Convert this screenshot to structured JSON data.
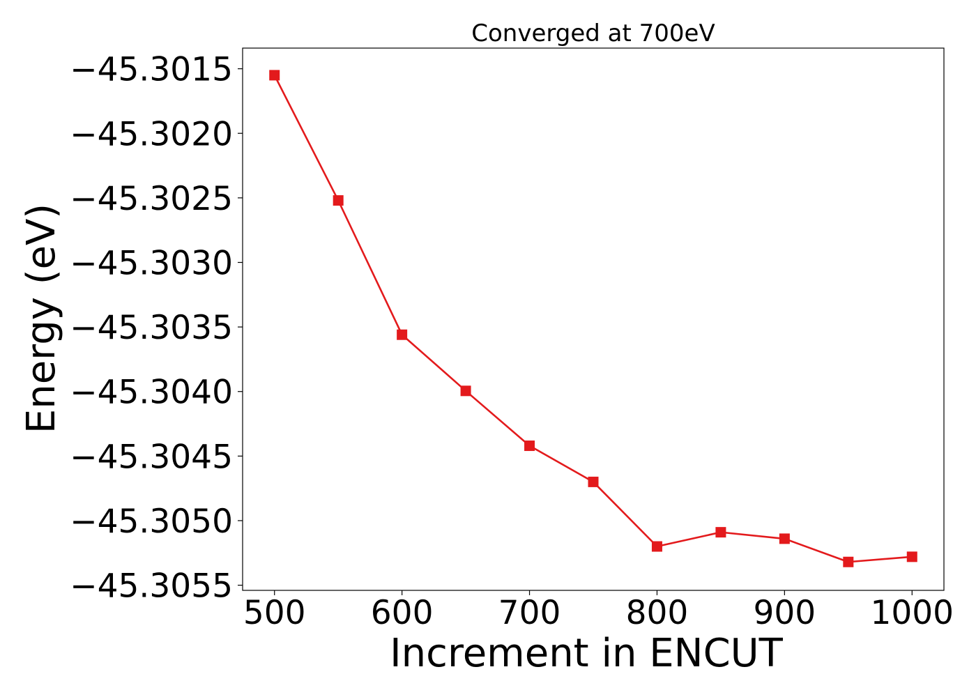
{
  "chart_data": {
    "type": "line",
    "title": "Converged at 700eV",
    "xlabel": "Increment in ENCUT",
    "ylabel": "Energy (eV)",
    "xlim": [
      475,
      1025
    ],
    "ylim": [
      -45.30554,
      -45.30134
    ],
    "xticks": [
      500,
      600,
      700,
      800,
      900,
      1000
    ],
    "xtick_labels": [
      "500",
      "600",
      "700",
      "800",
      "900",
      "1000"
    ],
    "yticks": [
      -45.3015,
      -45.302,
      -45.3025,
      -45.303,
      -45.3035,
      -45.304,
      -45.3045,
      -45.305,
      -45.3055
    ],
    "ytick_labels": [
      "−45.3015",
      "−45.3020",
      "−45.3025",
      "−45.3030",
      "−45.3035",
      "−45.3040",
      "−45.3045",
      "−45.3050",
      "−45.3055"
    ],
    "grid": false,
    "series": [
      {
        "color": "#e31a1c",
        "marker": "square",
        "x": [
          500,
          550,
          600,
          650,
          700,
          750,
          800,
          850,
          900,
          950,
          1000
        ],
        "y": [
          -45.30155,
          -45.30252,
          -45.30356,
          -45.303995,
          -45.30442,
          -45.3047,
          -45.3052,
          -45.30509,
          -45.30514,
          -45.30532,
          -45.30528
        ]
      }
    ]
  }
}
